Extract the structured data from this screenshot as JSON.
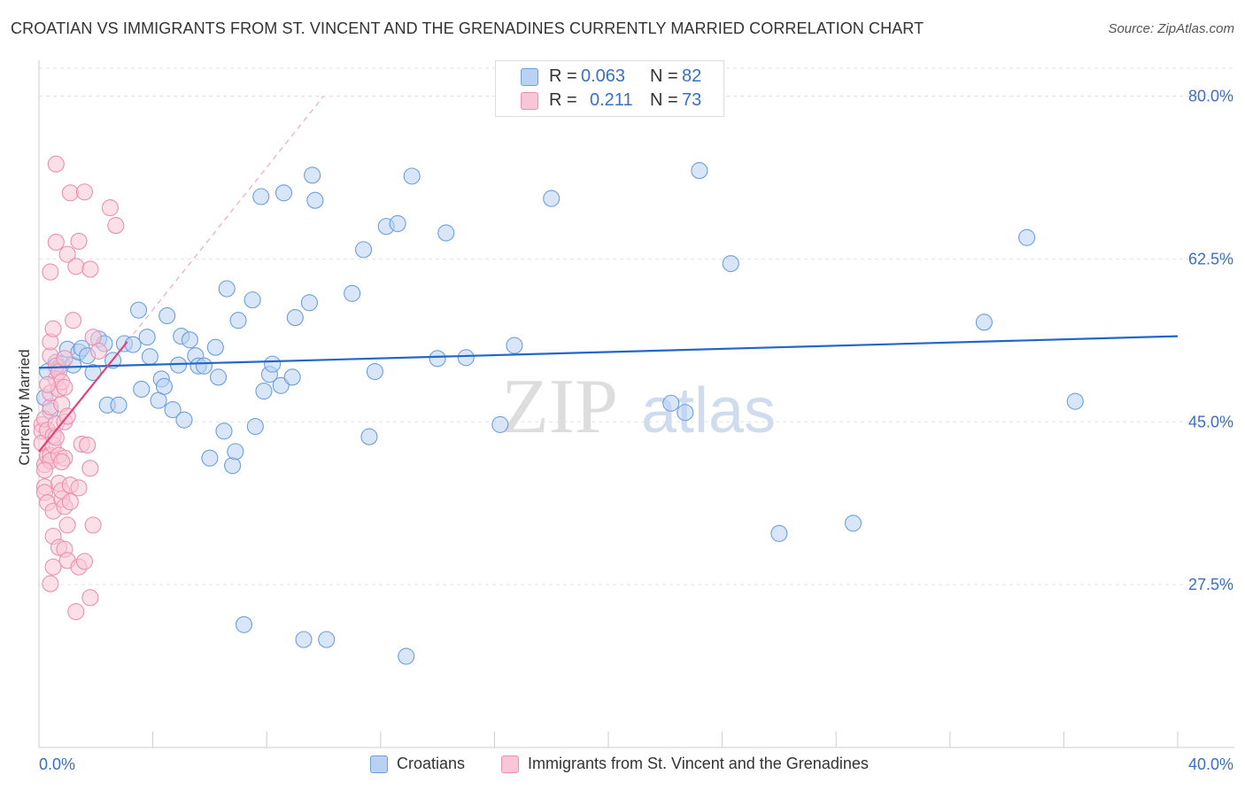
{
  "title": "CROATIAN VS IMMIGRANTS FROM ST. VINCENT AND THE GRENADINES CURRENTLY MARRIED CORRELATION CHART",
  "source": "Source: ZipAtlas.com",
  "watermark": {
    "zip": "ZIP",
    "atlas": "atlas"
  },
  "legend": {
    "r_label": "R =",
    "n_label": "N =",
    "rows": [
      {
        "r": "0.063",
        "n": "82"
      },
      {
        "r": "0.211",
        "n": "73"
      }
    ]
  },
  "chart_data": {
    "type": "scatter",
    "title": "CROATIAN VS IMMIGRANTS FROM ST. VINCENT AND THE GRENADINES CURRENTLY MARRIED CORRELATION CHART",
    "xlabel": "",
    "ylabel": "Currently Married",
    "xlim": [
      0,
      40
    ],
    "ylim": [
      10,
      83
    ],
    "x_tick_labels": {
      "min": "0.0%",
      "max": "40.0%"
    },
    "y_ticks": [
      {
        "value": 27.5,
        "label": "27.5%"
      },
      {
        "value": 45.0,
        "label": "45.0%"
      },
      {
        "value": 62.5,
        "label": "62.5%"
      },
      {
        "value": 80.0,
        "label": "80.0%"
      }
    ],
    "grid": true,
    "series": [
      {
        "name": "Croatians",
        "color": "#6a9fe0",
        "fill": "#b9d1f2",
        "line_color": "#2266cc",
        "trend": {
          "x": [
            0,
            40
          ],
          "y": [
            50.8,
            54.2
          ]
        },
        "points": [
          [
            0.2,
            47.6
          ],
          [
            0.3,
            50.4
          ],
          [
            0.4,
            46.2
          ],
          [
            0.6,
            51.4
          ],
          [
            0.7,
            50.9
          ],
          [
            0.8,
            51.2
          ],
          [
            1.0,
            52.8
          ],
          [
            1.2,
            51.1
          ],
          [
            1.4,
            52.5
          ],
          [
            1.5,
            52.9
          ],
          [
            1.7,
            52.1
          ],
          [
            1.9,
            50.3
          ],
          [
            2.1,
            53.9
          ],
          [
            2.3,
            53.4
          ],
          [
            2.4,
            46.8
          ],
          [
            2.6,
            51.6
          ],
          [
            2.8,
            46.8
          ],
          [
            3.0,
            53.4
          ],
          [
            3.3,
            53.3
          ],
          [
            3.5,
            57.0
          ],
          [
            3.6,
            48.5
          ],
          [
            3.9,
            52.0
          ],
          [
            3.8,
            54.1
          ],
          [
            4.2,
            47.3
          ],
          [
            4.3,
            49.6
          ],
          [
            4.4,
            48.8
          ],
          [
            4.5,
            56.4
          ],
          [
            4.7,
            46.3
          ],
          [
            4.9,
            51.1
          ],
          [
            5.0,
            54.2
          ],
          [
            5.1,
            45.2
          ],
          [
            5.3,
            53.8
          ],
          [
            5.5,
            52.1
          ],
          [
            5.6,
            51.0
          ],
          [
            5.8,
            51.0
          ],
          [
            6.0,
            41.1
          ],
          [
            6.2,
            53.0
          ],
          [
            6.3,
            49.8
          ],
          [
            6.5,
            44.0
          ],
          [
            6.6,
            59.3
          ],
          [
            6.8,
            40.3
          ],
          [
            6.9,
            41.8
          ],
          [
            7.0,
            55.9
          ],
          [
            7.2,
            23.2
          ],
          [
            7.5,
            58.1
          ],
          [
            7.6,
            44.5
          ],
          [
            7.8,
            69.2
          ],
          [
            7.9,
            48.3
          ],
          [
            8.1,
            50.1
          ],
          [
            8.2,
            51.2
          ],
          [
            8.5,
            48.9
          ],
          [
            8.6,
            69.6
          ],
          [
            8.9,
            49.8
          ],
          [
            9.0,
            56.2
          ],
          [
            9.3,
            21.6
          ],
          [
            9.5,
            57.8
          ],
          [
            9.6,
            71.5
          ],
          [
            9.7,
            68.8
          ],
          [
            10.1,
            21.6
          ],
          [
            11.0,
            58.8
          ],
          [
            11.4,
            63.5
          ],
          [
            11.6,
            43.4
          ],
          [
            11.8,
            50.4
          ],
          [
            12.2,
            66.0
          ],
          [
            12.6,
            66.3
          ],
          [
            12.9,
            19.8
          ],
          [
            13.1,
            71.4
          ],
          [
            14.0,
            51.8
          ],
          [
            14.3,
            65.3
          ],
          [
            15.0,
            51.9
          ],
          [
            16.2,
            44.7
          ],
          [
            16.7,
            53.2
          ],
          [
            18.0,
            69.0
          ],
          [
            22.2,
            47.0
          ],
          [
            22.7,
            46.0
          ],
          [
            23.2,
            72.0
          ],
          [
            24.3,
            62.0
          ],
          [
            26.0,
            33.0
          ],
          [
            28.6,
            34.1
          ],
          [
            33.2,
            55.7
          ],
          [
            34.7,
            64.8
          ],
          [
            36.4,
            47.2
          ]
        ]
      },
      {
        "name": "Immigrants from St. Vincent and the Grenadines",
        "color": "#ec8fae",
        "fill": "#f8c6d6",
        "line_color": "#e0437a",
        "trend": {
          "x": [
            0,
            3.1
          ],
          "y": [
            41.8,
            53.6
          ]
        },
        "trend_extension": {
          "x": [
            3.1,
            10.0
          ],
          "y": [
            53.6,
            80.0
          ]
        },
        "points": [
          [
            0.1,
            44.7
          ],
          [
            0.1,
            44.0
          ],
          [
            0.1,
            42.7
          ],
          [
            0.2,
            38.0
          ],
          [
            0.2,
            40.4
          ],
          [
            0.2,
            37.4
          ],
          [
            0.2,
            45.3
          ],
          [
            0.3,
            41.3
          ],
          [
            0.3,
            44.1
          ],
          [
            0.3,
            36.3
          ],
          [
            0.4,
            41.4
          ],
          [
            0.4,
            40.8
          ],
          [
            0.4,
            46.6
          ],
          [
            0.4,
            48.1
          ],
          [
            0.4,
            52.1
          ],
          [
            0.4,
            53.6
          ],
          [
            0.4,
            61.1
          ],
          [
            0.4,
            27.6
          ],
          [
            0.5,
            29.4
          ],
          [
            0.5,
            32.7
          ],
          [
            0.5,
            35.4
          ],
          [
            0.5,
            55.0
          ],
          [
            0.5,
            42.5
          ],
          [
            0.5,
            43.5
          ],
          [
            0.6,
            72.7
          ],
          [
            0.6,
            64.3
          ],
          [
            0.6,
            51.0
          ],
          [
            0.6,
            49.6
          ],
          [
            0.6,
            44.8
          ],
          [
            0.7,
            31.5
          ],
          [
            0.7,
            38.4
          ],
          [
            0.7,
            41.4
          ],
          [
            0.7,
            48.5
          ],
          [
            0.7,
            50.4
          ],
          [
            0.8,
            49.3
          ],
          [
            0.8,
            46.9
          ],
          [
            0.8,
            36.7
          ],
          [
            0.8,
            37.6
          ],
          [
            0.9,
            31.3
          ],
          [
            0.9,
            35.9
          ],
          [
            0.9,
            41.1
          ],
          [
            0.9,
            51.8
          ],
          [
            0.9,
            48.7
          ],
          [
            0.9,
            45.0
          ],
          [
            1.0,
            63.0
          ],
          [
            1.0,
            45.6
          ],
          [
            1.0,
            30.1
          ],
          [
            1.1,
            69.6
          ],
          [
            1.1,
            36.4
          ],
          [
            1.1,
            38.2
          ],
          [
            1.2,
            55.9
          ],
          [
            1.3,
            61.7
          ],
          [
            1.3,
            24.6
          ],
          [
            1.4,
            64.4
          ],
          [
            1.4,
            37.9
          ],
          [
            1.4,
            29.4
          ],
          [
            1.5,
            42.6
          ],
          [
            1.6,
            69.7
          ],
          [
            1.6,
            30.0
          ],
          [
            1.7,
            42.5
          ],
          [
            1.8,
            40.0
          ],
          [
            1.8,
            26.1
          ],
          [
            1.8,
            61.4
          ],
          [
            1.9,
            33.9
          ],
          [
            1.9,
            54.1
          ],
          [
            2.1,
            52.6
          ],
          [
            2.5,
            68.0
          ],
          [
            2.7,
            66.1
          ],
          [
            0.3,
            49.0
          ],
          [
            0.2,
            39.8
          ],
          [
            0.6,
            43.3
          ],
          [
            1.0,
            33.9
          ],
          [
            0.8,
            40.7
          ]
        ]
      }
    ]
  }
}
